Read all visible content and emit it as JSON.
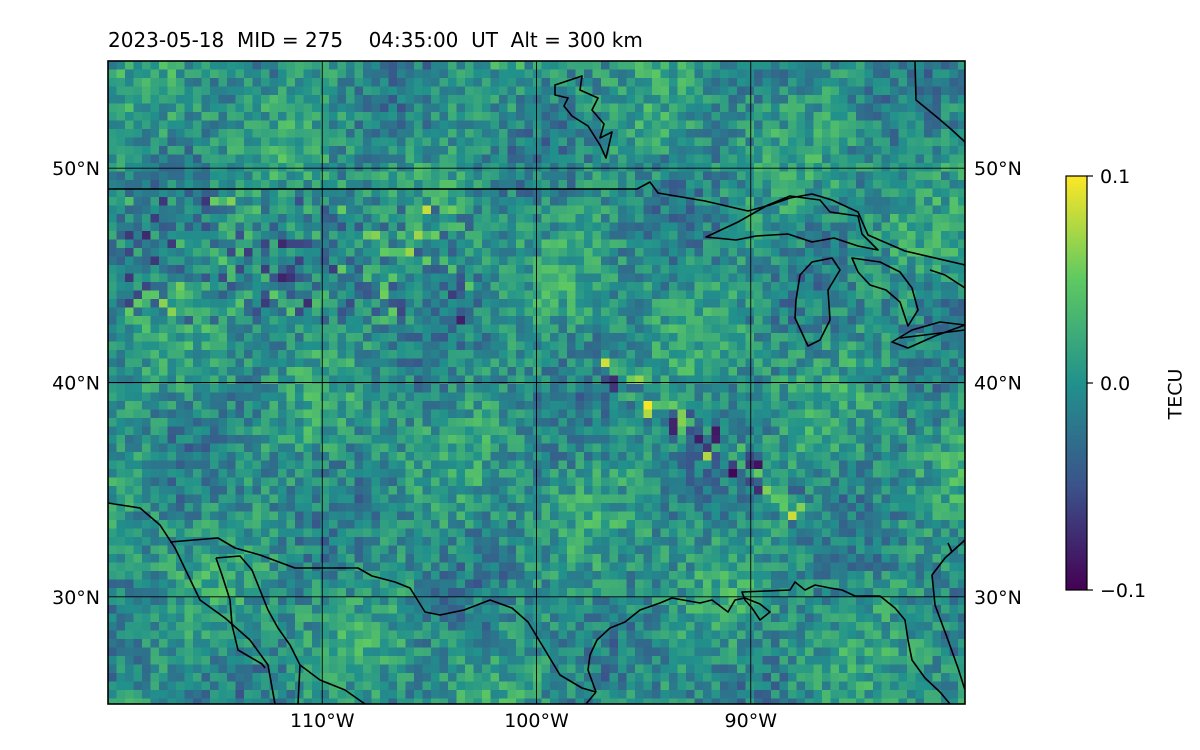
{
  "title": "2023-05-18  MID = 275    04:35:00  UT  Alt = 300 km",
  "map": {
    "lon_range": [
      -120,
      -80
    ],
    "lat_range": [
      25,
      55
    ],
    "lat_ticks": [
      {
        "value": 50,
        "label": "50°N"
      },
      {
        "value": 40,
        "label": "40°N"
      },
      {
        "value": 30,
        "label": "30°N"
      }
    ],
    "lon_ticks": [
      {
        "value": -110,
        "label": "110°W"
      },
      {
        "value": -100,
        "label": "100°W"
      },
      {
        "value": -90,
        "label": "90°W"
      }
    ],
    "grid": true,
    "colormap": "viridis"
  },
  "colorbar": {
    "label": "TECU",
    "min": -0.1,
    "max": 0.1,
    "ticks": [
      {
        "value": 0.1,
        "label": "0.1"
      },
      {
        "value": 0.0,
        "label": "0.0"
      },
      {
        "value": -0.1,
        "label": "−0.1"
      }
    ]
  },
  "colors": {
    "viridis_low": "#440154",
    "viridis_mid": "#21918c",
    "viridis_high": "#fde725"
  }
}
